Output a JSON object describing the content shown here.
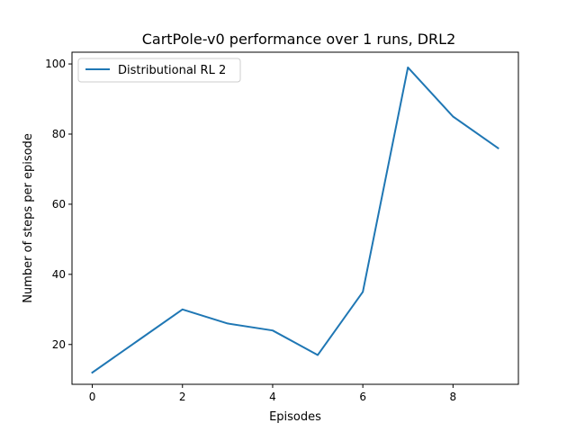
{
  "chart_data": {
    "type": "line",
    "title": "CartPole-v0 performance over 1 runs, DRL2",
    "xlabel": "Episodes",
    "ylabel": "Number of steps per episode",
    "xlim": [
      -0.45,
      9.45
    ],
    "ylim": [
      8.65,
      103.35
    ],
    "xticks": [
      0,
      2,
      4,
      6,
      8
    ],
    "yticks": [
      20,
      40,
      60,
      80,
      100
    ],
    "grid": false,
    "legend_position": "top-left",
    "series": [
      {
        "name": "Distributional RL 2",
        "color": "#1f77b4",
        "x": [
          0,
          1,
          2,
          3,
          4,
          5,
          6,
          7,
          8,
          9
        ],
        "y": [
          12,
          21,
          30,
          26,
          24,
          17,
          35,
          99,
          85,
          76
        ]
      }
    ]
  }
}
